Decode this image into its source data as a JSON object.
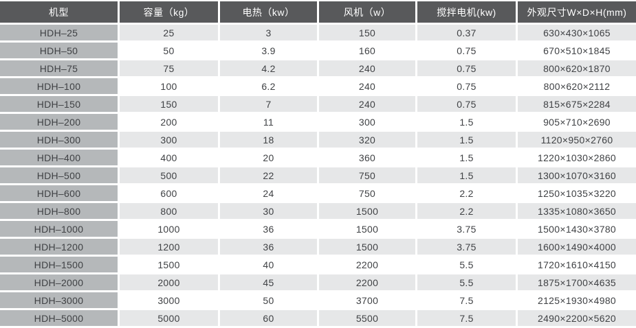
{
  "colors": {
    "header_bg": "#58595b",
    "header_text": "#ffffff",
    "model_column_bg": "#b5b8ba",
    "row_alt_bg": "#e6e7e8",
    "row_bg": "#ffffff",
    "cell_text": "#3f4144",
    "separator": "#ffffff"
  },
  "chart_data": {
    "type": "table",
    "title": "",
    "columns": [
      "机型",
      "容量（kg）",
      "电热（kw）",
      "风机（w）",
      "搅拌电机(kw)",
      "外观尺寸W×D×H(mm)"
    ],
    "rows": [
      {
        "model": "HDH–25",
        "capacity_kg": "25",
        "heating_kw": "3",
        "fan_w": "150",
        "mixer_motor_kw": "0.37",
        "dimensions_mm": "630×430×1065"
      },
      {
        "model": "HDH–50",
        "capacity_kg": "50",
        "heating_kw": "3.9",
        "fan_w": "160",
        "mixer_motor_kw": "0.75",
        "dimensions_mm": "670×510×1845"
      },
      {
        "model": "HDH–75",
        "capacity_kg": "75",
        "heating_kw": "4.2",
        "fan_w": "240",
        "mixer_motor_kw": "0.75",
        "dimensions_mm": "800×620×1870"
      },
      {
        "model": "HDH–100",
        "capacity_kg": "100",
        "heating_kw": "6.2",
        "fan_w": "240",
        "mixer_motor_kw": "0.75",
        "dimensions_mm": "800×620×2112"
      },
      {
        "model": "HDH–150",
        "capacity_kg": "150",
        "heating_kw": "7",
        "fan_w": "240",
        "mixer_motor_kw": "0.75",
        "dimensions_mm": "815×675×2284"
      },
      {
        "model": "HDH–200",
        "capacity_kg": "200",
        "heating_kw": "11",
        "fan_w": "300",
        "mixer_motor_kw": "1.5",
        "dimensions_mm": "905×710×2690"
      },
      {
        "model": "HDH–300",
        "capacity_kg": "300",
        "heating_kw": "18",
        "fan_w": "320",
        "mixer_motor_kw": "1.5",
        "dimensions_mm": "1120×950×2760"
      },
      {
        "model": "HDH–400",
        "capacity_kg": "400",
        "heating_kw": "20",
        "fan_w": "360",
        "mixer_motor_kw": "1.5",
        "dimensions_mm": "1220×1030×2860"
      },
      {
        "model": "HDH–500",
        "capacity_kg": "500",
        "heating_kw": "22",
        "fan_w": "750",
        "mixer_motor_kw": "1.5",
        "dimensions_mm": "1300×1070×3160"
      },
      {
        "model": "HDH–600",
        "capacity_kg": "600",
        "heating_kw": "24",
        "fan_w": "750",
        "mixer_motor_kw": "2.2",
        "dimensions_mm": "1250×1035×3220"
      },
      {
        "model": "HDH–800",
        "capacity_kg": "800",
        "heating_kw": "30",
        "fan_w": "1500",
        "mixer_motor_kw": "2.2",
        "dimensions_mm": "1335×1080×3650"
      },
      {
        "model": "HDH–1000",
        "capacity_kg": "1000",
        "heating_kw": "36",
        "fan_w": "1500",
        "mixer_motor_kw": "3.75",
        "dimensions_mm": "1500×1430×3780"
      },
      {
        "model": "HDH–1200",
        "capacity_kg": "1200",
        "heating_kw": "36",
        "fan_w": "1500",
        "mixer_motor_kw": "3.75",
        "dimensions_mm": "1600×1490×4000"
      },
      {
        "model": "HDH–1500",
        "capacity_kg": "1500",
        "heating_kw": "40",
        "fan_w": "2200",
        "mixer_motor_kw": "5.5",
        "dimensions_mm": "1720×1610×4150"
      },
      {
        "model": "HDH–2000",
        "capacity_kg": "2000",
        "heating_kw": "45",
        "fan_w": "2200",
        "mixer_motor_kw": "5.5",
        "dimensions_mm": "1875×1700×4635"
      },
      {
        "model": "HDH–3000",
        "capacity_kg": "3000",
        "heating_kw": "50",
        "fan_w": "3700",
        "mixer_motor_kw": "7.5",
        "dimensions_mm": "2125×1930×4980"
      },
      {
        "model": "HDH–5000",
        "capacity_kg": "5000",
        "heating_kw": "60",
        "fan_w": "5500",
        "mixer_motor_kw": "7.5",
        "dimensions_mm": "2490×2200×5620"
      }
    ]
  }
}
